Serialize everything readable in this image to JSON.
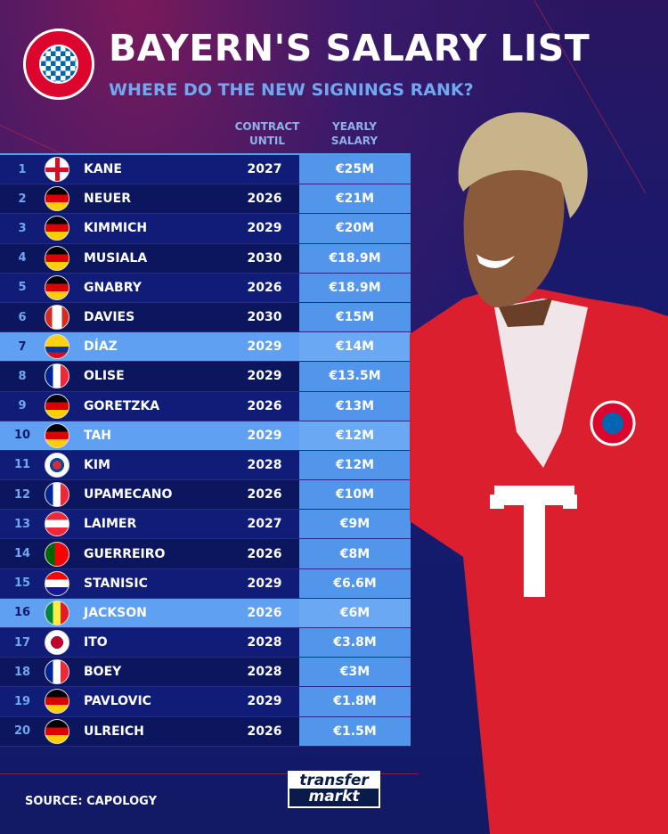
{
  "header": {
    "title": "BAYERN'S SALARY LIST",
    "subtitle": "WHERE DO THE NEW SIGNINGS RANK?",
    "logo_text": "FC BAYERN MÜNCHEN"
  },
  "columns": {
    "contract": "CONTRACT UNTIL",
    "contract_l1": "CONTRACT",
    "contract_l2": "UNTIL",
    "salary_l1": "YEARLY",
    "salary_l2": "SALARY"
  },
  "highlight_color": "#5fa0f2",
  "rows": [
    {
      "rank": "1",
      "flag": "eng",
      "name": "KANE",
      "until": "2027",
      "salary": "€25M",
      "highlight": false
    },
    {
      "rank": "2",
      "flag": "ger",
      "name": "NEUER",
      "until": "2026",
      "salary": "€21M",
      "highlight": false
    },
    {
      "rank": "3",
      "flag": "ger",
      "name": "KIMMICH",
      "until": "2029",
      "salary": "€20M",
      "highlight": false
    },
    {
      "rank": "4",
      "flag": "ger",
      "name": "MUSIALA",
      "until": "2030",
      "salary": "€18.9M",
      "highlight": false
    },
    {
      "rank": "5",
      "flag": "ger",
      "name": "GNABRY",
      "until": "2026",
      "salary": "€18.9M",
      "highlight": false
    },
    {
      "rank": "6",
      "flag": "can",
      "name": "DAVIES",
      "until": "2030",
      "salary": "€15M",
      "highlight": false
    },
    {
      "rank": "7",
      "flag": "col",
      "name": "DÍAZ",
      "until": "2029",
      "salary": "€14M",
      "highlight": true
    },
    {
      "rank": "8",
      "flag": "fra",
      "name": "OLISE",
      "until": "2029",
      "salary": "€13.5M",
      "highlight": false
    },
    {
      "rank": "9",
      "flag": "ger",
      "name": "GORETZKA",
      "until": "2026",
      "salary": "€13M",
      "highlight": false
    },
    {
      "rank": "10",
      "flag": "ger",
      "name": "TAH",
      "until": "2029",
      "salary": "€12M",
      "highlight": true
    },
    {
      "rank": "11",
      "flag": "kor",
      "name": "KIM",
      "until": "2028",
      "salary": "€12M",
      "highlight": false
    },
    {
      "rank": "12",
      "flag": "fra",
      "name": "UPAMECANO",
      "until": "2026",
      "salary": "€10M",
      "highlight": false
    },
    {
      "rank": "13",
      "flag": "aut",
      "name": "LAIMER",
      "until": "2027",
      "salary": "€9M",
      "highlight": false
    },
    {
      "rank": "14",
      "flag": "por",
      "name": "GUERREIRO",
      "until": "2026",
      "salary": "€8M",
      "highlight": false
    },
    {
      "rank": "15",
      "flag": "cro",
      "name": "STANISIC",
      "until": "2029",
      "salary": "€6.6M",
      "highlight": false
    },
    {
      "rank": "16",
      "flag": "sen",
      "name": "JACKSON",
      "until": "2026",
      "salary": "€6M",
      "highlight": true
    },
    {
      "rank": "17",
      "flag": "jpn",
      "name": "ITO",
      "until": "2028",
      "salary": "€3.8M",
      "highlight": false
    },
    {
      "rank": "18",
      "flag": "fra",
      "name": "BOEY",
      "until": "2028",
      "salary": "€3M",
      "highlight": false
    },
    {
      "rank": "19",
      "flag": "ger",
      "name": "PAVLOVIC",
      "until": "2029",
      "salary": "€1.8M",
      "highlight": false
    },
    {
      "rank": "20",
      "flag": "ger",
      "name": "ULREICH",
      "until": "2026",
      "salary": "€1.5M",
      "highlight": false
    }
  ],
  "footer": {
    "source": "SOURCE: CAPOLOGY",
    "brand_l1": "transfer",
    "brand_l2": "markt"
  }
}
